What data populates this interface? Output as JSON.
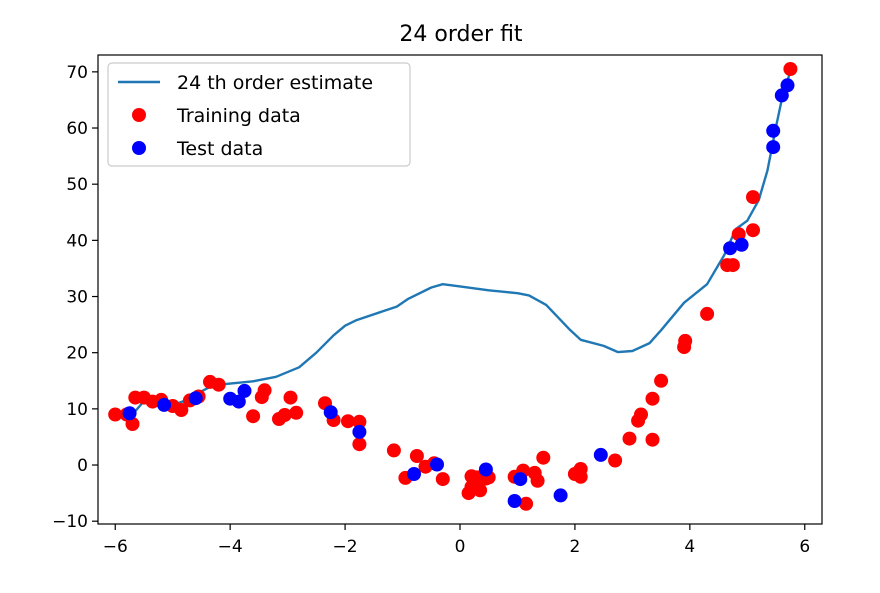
{
  "chart_data": {
    "type": "scatter",
    "title": "24 order fit",
    "xlabel": "",
    "ylabel": "",
    "xlim": [
      -6.3,
      6.3
    ],
    "ylim": [
      -10.5,
      73
    ],
    "x_ticks": [
      -6,
      -4,
      -2,
      0,
      2,
      4,
      6
    ],
    "y_ticks": [
      -10,
      0,
      10,
      20,
      30,
      40,
      50,
      60,
      70
    ],
    "x_tick_labels": [
      "−6",
      "−4",
      "−2",
      "0",
      "2",
      "4",
      "6"
    ],
    "y_tick_labels": [
      "−10",
      "0",
      "10",
      "20",
      "30",
      "40",
      "50",
      "60",
      "70"
    ],
    "grid": false,
    "legend_position": "upper-left",
    "legend": [
      {
        "label": "24 th order estimate",
        "kind": "line",
        "color": "#1f77b4"
      },
      {
        "label": "Training data",
        "kind": "marker",
        "color": "#ff0000"
      },
      {
        "label": "Test data",
        "kind": "marker",
        "color": "#0000ff"
      }
    ],
    "series": [
      {
        "name": "24 th order estimate",
        "kind": "line",
        "color": "#1f77b4",
        "points": [
          [
            -6.0,
            9.6
          ],
          [
            -5.7,
            9.0
          ],
          [
            -5.5,
            11.4
          ],
          [
            -5.2,
            10.7
          ],
          [
            -5.1,
            11.3
          ],
          [
            -5.0,
            10.7
          ],
          [
            -4.8,
            11.4
          ],
          [
            -4.5,
            13.1
          ],
          [
            -4.3,
            14.2
          ],
          [
            -4.0,
            14.5
          ],
          [
            -3.6,
            14.9
          ],
          [
            -3.2,
            15.7
          ],
          [
            -2.8,
            17.4
          ],
          [
            -2.5,
            20.0
          ],
          [
            -2.2,
            23.1
          ],
          [
            -2.0,
            24.8
          ],
          [
            -1.8,
            25.8
          ],
          [
            -1.1,
            28.2
          ],
          [
            -0.9,
            29.6
          ],
          [
            -0.5,
            31.6
          ],
          [
            -0.3,
            32.2
          ],
          [
            0.0,
            31.8
          ],
          [
            0.5,
            31.1
          ],
          [
            1.0,
            30.6
          ],
          [
            1.2,
            30.2
          ],
          [
            1.5,
            28.5
          ],
          [
            1.9,
            24.2
          ],
          [
            2.1,
            22.3
          ],
          [
            2.5,
            21.2
          ],
          [
            2.75,
            20.1
          ],
          [
            3.0,
            20.3
          ],
          [
            3.3,
            21.7
          ],
          [
            3.5,
            24.0
          ],
          [
            3.9,
            28.9
          ],
          [
            4.3,
            32.2
          ],
          [
            4.6,
            37.4
          ],
          [
            4.8,
            42.0
          ],
          [
            5.0,
            43.5
          ],
          [
            5.2,
            47.2
          ],
          [
            5.35,
            52.4
          ],
          [
            5.5,
            60.2
          ],
          [
            5.6,
            65.1
          ],
          [
            5.75,
            70.1
          ]
        ]
      },
      {
        "name": "Training data",
        "kind": "scatter",
        "color": "#ff0000",
        "points": [
          [
            -6.0,
            9.0
          ],
          [
            -5.8,
            9.0
          ],
          [
            -5.7,
            7.3
          ],
          [
            -5.65,
            12.0
          ],
          [
            -5.5,
            12.0
          ],
          [
            -5.35,
            11.3
          ],
          [
            -5.2,
            11.6
          ],
          [
            -5.0,
            10.5
          ],
          [
            -4.85,
            9.8
          ],
          [
            -4.7,
            11.5
          ],
          [
            -4.55,
            12.2
          ],
          [
            -4.35,
            14.8
          ],
          [
            -4.2,
            14.3
          ],
          [
            -3.6,
            8.7
          ],
          [
            -3.45,
            12.1
          ],
          [
            -3.4,
            13.3
          ],
          [
            -3.15,
            8.2
          ],
          [
            -3.05,
            8.9
          ],
          [
            -2.95,
            12.0
          ],
          [
            -2.85,
            9.3
          ],
          [
            -2.35,
            11.0
          ],
          [
            -2.2,
            8.0
          ],
          [
            -1.95,
            7.8
          ],
          [
            -1.75,
            7.7
          ],
          [
            -1.75,
            3.7
          ],
          [
            -1.15,
            2.6
          ],
          [
            -0.95,
            -2.3
          ],
          [
            -0.75,
            1.6
          ],
          [
            -0.6,
            -0.3
          ],
          [
            -0.45,
            0.3
          ],
          [
            -0.3,
            -2.5
          ],
          [
            0.2,
            -2.0
          ],
          [
            0.15,
            -5.0
          ],
          [
            0.2,
            -3.9
          ],
          [
            0.3,
            -2.2
          ],
          [
            0.35,
            -4.5
          ],
          [
            0.45,
            -2.4
          ],
          [
            0.5,
            -2.2
          ],
          [
            0.95,
            -2.1
          ],
          [
            1.1,
            -1.0
          ],
          [
            1.15,
            -6.9
          ],
          [
            1.3,
            -1.4
          ],
          [
            1.35,
            -2.8
          ],
          [
            1.45,
            1.3
          ],
          [
            2.0,
            -1.6
          ],
          [
            2.1,
            -0.7
          ],
          [
            2.1,
            -2.1
          ],
          [
            2.7,
            0.8
          ],
          [
            2.95,
            4.7
          ],
          [
            3.1,
            7.9
          ],
          [
            3.15,
            9.0
          ],
          [
            3.35,
            4.5
          ],
          [
            3.35,
            11.8
          ],
          [
            3.5,
            15.0
          ],
          [
            3.9,
            21.0
          ],
          [
            3.92,
            22.1
          ],
          [
            4.3,
            26.9
          ],
          [
            4.65,
            35.6
          ],
          [
            4.75,
            35.6
          ],
          [
            4.85,
            41.1
          ],
          [
            5.1,
            47.7
          ],
          [
            5.1,
            41.8
          ],
          [
            5.75,
            70.5
          ]
        ]
      },
      {
        "name": "Test data",
        "kind": "scatter",
        "color": "#0000ff",
        "points": [
          [
            -5.75,
            9.2
          ],
          [
            -5.15,
            10.7
          ],
          [
            -4.6,
            11.9
          ],
          [
            -4.0,
            11.8
          ],
          [
            -3.85,
            11.3
          ],
          [
            -3.75,
            13.2
          ],
          [
            -2.25,
            9.4
          ],
          [
            -1.75,
            5.9
          ],
          [
            -0.8,
            -1.6
          ],
          [
            -0.4,
            0.1
          ],
          [
            0.45,
            -0.8
          ],
          [
            0.95,
            -6.4
          ],
          [
            1.05,
            -2.5
          ],
          [
            1.75,
            -5.4
          ],
          [
            2.45,
            1.8
          ],
          [
            4.7,
            38.6
          ],
          [
            4.9,
            39.2
          ],
          [
            5.45,
            59.5
          ],
          [
            5.45,
            56.6
          ],
          [
            5.6,
            65.8
          ],
          [
            5.7,
            67.6
          ]
        ]
      }
    ]
  }
}
